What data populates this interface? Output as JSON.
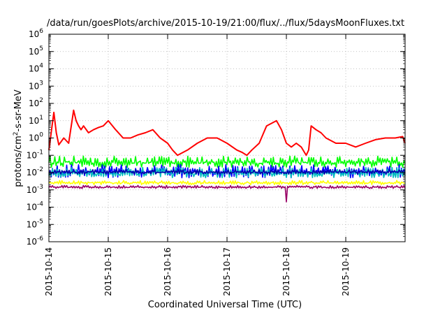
{
  "chart_data": {
    "type": "line",
    "title": "/data/run/goesPlots/archive/2015-10-19/21:00/flux/../flux/5daysMoonFluxes.txt",
    "xlabel": "Coordinated Universal Time (UTC)",
    "ylabel_parts": [
      "protons/cm",
      "2",
      "-s-sr-MeV"
    ],
    "x_range": [
      "2015-10-14T00:00",
      "2015-10-19T23:59"
    ],
    "x_ticks": [
      "2015-10-14",
      "2015-10-15",
      "2015-10-16",
      "2015-10-17",
      "2015-10-18",
      "2015-10-19"
    ],
    "y_scale": "log",
    "ylim": [
      1e-06,
      1000000.0
    ],
    "y_tick_exponents": [
      -6,
      -5,
      -4,
      -3,
      -2,
      -1,
      0,
      1,
      2,
      3,
      4,
      5,
      6
    ],
    "y_tick_base": "10",
    "grid": true,
    "series": [
      {
        "color": "#ff0000",
        "x": [
          "2015-10-14T00:00",
          "2015-10-14T02:00",
          "2015-10-14T03:00",
          "2015-10-14T04:00",
          "2015-10-14T06:00",
          "2015-10-14T08:00",
          "2015-10-14T10:00",
          "2015-10-14T11:00",
          "2015-10-14T12:00",
          "2015-10-14T13:00",
          "2015-10-14T14:00",
          "2015-10-14T16:00",
          "2015-10-14T18:00",
          "2015-10-14T20:00",
          "2015-10-14T22:00",
          "2015-10-15T00:00",
          "2015-10-15T03:00",
          "2015-10-15T06:00",
          "2015-10-15T09:00",
          "2015-10-15T12:00",
          "2015-10-15T15:00",
          "2015-10-15T18:00",
          "2015-10-15T21:00",
          "2015-10-16T00:00",
          "2015-10-16T02:00",
          "2015-10-16T04:00",
          "2015-10-16T08:00",
          "2015-10-16T12:00",
          "2015-10-16T16:00",
          "2015-10-16T20:00",
          "2015-10-17T00:00",
          "2015-10-17T04:00",
          "2015-10-17T06:00",
          "2015-10-17T08:00",
          "2015-10-17T10:00",
          "2015-10-17T13:00",
          "2015-10-17T16:00",
          "2015-10-17T20:00",
          "2015-10-17T22:00",
          "2015-10-18T00:00",
          "2015-10-18T02:00",
          "2015-10-18T04:00",
          "2015-10-18T06:00",
          "2015-10-18T08:00",
          "2015-10-18T09:00",
          "2015-10-18T10:00",
          "2015-10-18T12:00",
          "2015-10-18T14:00",
          "2015-10-18T16:00",
          "2015-10-18T20:00",
          "2015-10-19T00:00",
          "2015-10-19T04:00",
          "2015-10-19T08:00",
          "2015-10-19T12:00",
          "2015-10-19T16:00",
          "2015-10-19T20:00",
          "2015-10-19T23:00",
          "2015-10-19T23:59"
        ],
        "values": [
          0.2,
          30,
          2,
          0.4,
          1,
          0.5,
          40,
          10,
          5,
          3,
          5,
          2,
          3,
          4,
          5,
          10,
          3,
          1,
          1,
          1.5,
          2,
          3,
          1,
          0.5,
          0.2,
          0.1,
          0.2,
          0.5,
          1,
          1,
          0.5,
          0.2,
          0.15,
          0.1,
          0.2,
          0.5,
          5,
          10,
          3,
          0.5,
          0.3,
          0.5,
          0.3,
          0.1,
          0.2,
          5,
          3,
          2,
          1,
          0.5,
          0.5,
          0.3,
          0.5,
          0.8,
          1,
          1,
          1.2,
          0.5
        ]
      },
      {
        "color": "#00ff00",
        "band": [
          0.02,
          0.09
        ],
        "noise": "dense"
      },
      {
        "color": "#0000ff",
        "band": [
          0.005,
          0.03
        ],
        "noise": "dense"
      },
      {
        "color": "#00bfbf",
        "band": [
          0.005,
          0.02
        ],
        "noise": "dense"
      },
      {
        "color": "#0000aa",
        "band": [
          0.008,
          0.015
        ],
        "noise": "dense"
      },
      {
        "color": "#ffff00",
        "band": [
          0.002,
          0.0035
        ],
        "noise": "dense"
      },
      {
        "color": "#990066",
        "band": [
          0.0012,
          0.0018
        ],
        "noise": "dense",
        "dips": [
          {
            "x": "2015-10-18T00:00",
            "value": 0.0002
          }
        ]
      }
    ]
  }
}
